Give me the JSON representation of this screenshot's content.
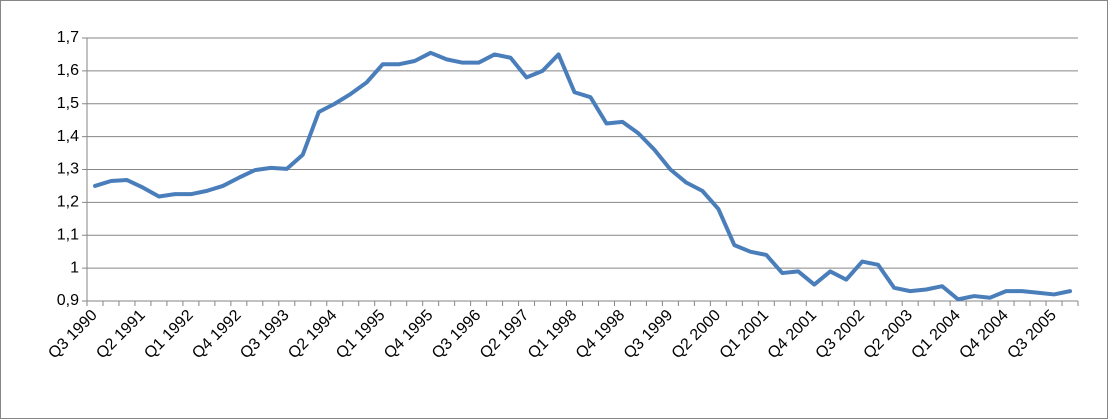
{
  "chart_data": {
    "type": "line",
    "categories": [
      "Q3 1990",
      null,
      null,
      "Q2 1991",
      null,
      null,
      "Q1 1992",
      null,
      null,
      "Q4 1992",
      null,
      null,
      "Q3 1993",
      null,
      null,
      "Q2 1994",
      null,
      null,
      "Q1 1995",
      null,
      null,
      "Q4 1995",
      null,
      null,
      "Q3 1996",
      null,
      null,
      "Q2 1997",
      null,
      null,
      "Q1 1998",
      null,
      null,
      "Q4 1998",
      null,
      null,
      "Q3 1999",
      null,
      null,
      "Q2 2000",
      null,
      null,
      "Q1 2001",
      null,
      null,
      "Q4 2001",
      null,
      null,
      "Q3 2002",
      null,
      null,
      "Q2 2003",
      null,
      null,
      "Q1 2004",
      null,
      null,
      "Q4 2004",
      null,
      null,
      "Q3 2005",
      null
    ],
    "values": [
      1.25,
      1.265,
      1.268,
      1.245,
      1.218,
      1.225,
      1.225,
      1.235,
      1.25,
      1.275,
      1.298,
      1.305,
      1.302,
      1.345,
      1.475,
      1.5,
      1.53,
      1.565,
      1.62,
      1.62,
      1.63,
      1.655,
      1.635,
      1.625,
      1.625,
      1.65,
      1.64,
      1.58,
      1.6,
      1.65,
      1.535,
      1.52,
      1.44,
      1.445,
      1.41,
      1.36,
      1.3,
      1.26,
      1.235,
      1.18,
      1.07,
      1.05,
      1.04,
      0.985,
      0.99,
      0.95,
      0.99,
      0.965,
      1.02,
      1.01,
      0.94,
      0.93,
      0.935,
      0.945,
      0.905,
      0.915,
      0.91,
      0.93,
      0.93,
      0.925,
      0.92,
      0.93
    ],
    "color": "#4a7ebb",
    "ylim": [
      0.9,
      1.7
    ],
    "yticks": [
      {
        "value": 0.9,
        "label": "0,9"
      },
      1,
      {
        "value": 1.1,
        "label": "1,1"
      },
      {
        "value": 1.2,
        "label": "1,2"
      },
      {
        "value": 1.3,
        "label": "1,3"
      },
      {
        "value": 1.4,
        "label": "1,4"
      },
      {
        "value": 1.5,
        "label": "1,5"
      },
      {
        "value": 1.6,
        "label": "1,6"
      },
      {
        "value": 1.7,
        "label": "1,7"
      }
    ],
    "grid": true
  }
}
